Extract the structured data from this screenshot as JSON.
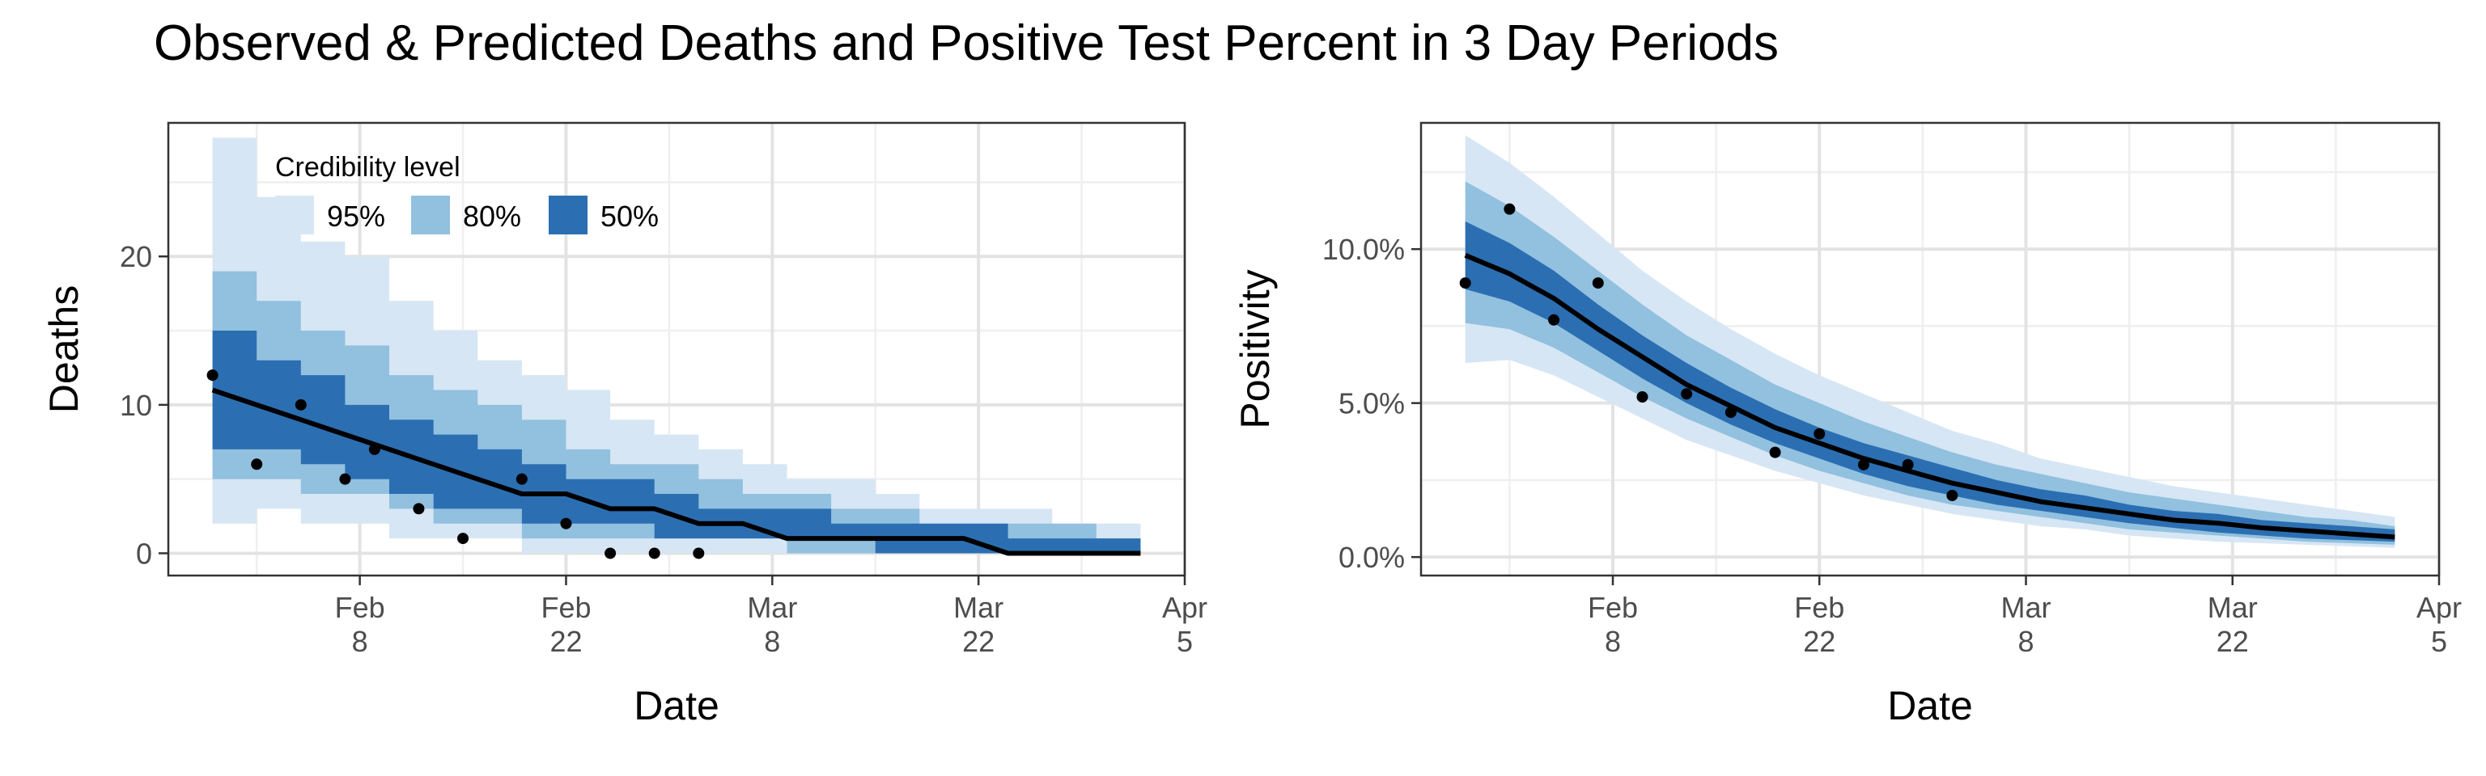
{
  "title": "Observed & Predicted Deaths and Positive Test Percent in 3 Day Periods",
  "colors": {
    "band95": "#d6e6f4",
    "band80": "#92c0df",
    "band50": "#2b6fb2",
    "median": "#000000",
    "points": "#000000",
    "grid_major": "#e3e3e3",
    "grid_minor": "#efefef",
    "panel_border": "#333333"
  },
  "chart_data": [
    {
      "type": "area",
      "title": "",
      "xlabel": "Date",
      "ylabel": "Deaths",
      "x_axis": "date",
      "xlim": [
        "2021-01-26",
        "2021-04-05"
      ],
      "ylim": [
        -1.5,
        29
      ],
      "x_ticks": [
        {
          "date": "2021-02-08",
          "label": [
            "Feb",
            "8"
          ]
        },
        {
          "date": "2021-02-22",
          "label": [
            "Feb",
            "22"
          ]
        },
        {
          "date": "2021-03-08",
          "label": [
            "Mar",
            "8"
          ]
        },
        {
          "date": "2021-03-22",
          "label": [
            "Mar",
            "22"
          ]
        },
        {
          "date": "2021-04-05",
          "label": [
            "Apr",
            "5"
          ]
        }
      ],
      "y_ticks": [
        {
          "value": 0,
          "label": "0"
        },
        {
          "value": 10,
          "label": "10"
        },
        {
          "value": 20,
          "label": "20"
        }
      ],
      "grid": true,
      "legend": {
        "title": "Credibility level",
        "placement": "top-left",
        "items": [
          {
            "label": "95%",
            "color": "#d6e6f4"
          },
          {
            "label": "80%",
            "color": "#92c0df"
          },
          {
            "label": "50%",
            "color": "#2b6fb2"
          }
        ]
      },
      "x": [
        "2021-01-29",
        "2021-02-01",
        "2021-02-04",
        "2021-02-07",
        "2021-02-10",
        "2021-02-13",
        "2021-02-16",
        "2021-02-19",
        "2021-02-22",
        "2021-02-25",
        "2021-02-28",
        "2021-03-03",
        "2021-03-06",
        "2021-03-09",
        "2021-03-12",
        "2021-03-15",
        "2021-03-18",
        "2021-03-21",
        "2021-03-24",
        "2021-03-27",
        "2021-03-30",
        "2021-04-02"
      ],
      "bands": {
        "95%": {
          "lower": [
            2,
            3,
            2,
            2,
            1,
            1,
            1,
            0,
            0,
            0,
            0,
            0,
            0,
            0,
            0,
            0,
            0,
            0,
            0,
            0,
            0,
            0
          ],
          "upper": [
            28,
            24,
            21,
            20,
            17,
            15,
            13,
            12,
            11,
            9,
            8,
            7,
            6,
            5,
            5,
            4,
            3,
            3,
            3,
            2,
            2,
            2
          ]
        },
        "80%": {
          "lower": [
            5,
            5,
            4,
            4,
            3,
            2,
            2,
            1,
            1,
            1,
            1,
            1,
            1,
            0,
            0,
            0,
            0,
            0,
            0,
            0,
            0,
            0
          ],
          "upper": [
            19,
            17,
            15,
            14,
            12,
            11,
            10,
            9,
            7,
            6,
            6,
            5,
            4,
            4,
            3,
            3,
            2,
            2,
            2,
            2,
            1,
            1
          ]
        },
        "50%": {
          "lower": [
            7,
            7,
            6,
            5,
            4,
            3,
            3,
            2,
            2,
            2,
            1,
            1,
            1,
            1,
            1,
            0,
            0,
            0,
            0,
            0,
            0,
            0
          ],
          "upper": [
            15,
            13,
            12,
            10,
            9,
            8,
            7,
            6,
            5,
            5,
            4,
            3,
            3,
            3,
            2,
            2,
            2,
            2,
            1,
            1,
            1,
            1
          ]
        }
      },
      "median": [
        11,
        10,
        9,
        8,
        7,
        6,
        5,
        4,
        4,
        3,
        3,
        2,
        2,
        1,
        1,
        1,
        1,
        1,
        0,
        0,
        0,
        0
      ],
      "observed": [
        {
          "x": "2021-01-29",
          "y": 12
        },
        {
          "x": "2021-02-01",
          "y": 6
        },
        {
          "x": "2021-02-04",
          "y": 10
        },
        {
          "x": "2021-02-07",
          "y": 5
        },
        {
          "x": "2021-02-09",
          "y": 7
        },
        {
          "x": "2021-02-12",
          "y": 3
        },
        {
          "x": "2021-02-15",
          "y": 1
        },
        {
          "x": "2021-02-19",
          "y": 5
        },
        {
          "x": "2021-02-22",
          "y": 2
        },
        {
          "x": "2021-02-25",
          "y": 0
        },
        {
          "x": "2021-02-28",
          "y": 0
        },
        {
          "x": "2021-03-03",
          "y": 0
        }
      ]
    },
    {
      "type": "area",
      "title": "",
      "xlabel": "Date",
      "ylabel": "Positivity",
      "x_axis": "date",
      "xlim": [
        "2021-01-26",
        "2021-04-05"
      ],
      "ylim": [
        -0.006,
        0.141
      ],
      "x_ticks": [
        {
          "date": "2021-02-08",
          "label": [
            "Feb",
            "8"
          ]
        },
        {
          "date": "2021-02-22",
          "label": [
            "Feb",
            "22"
          ]
        },
        {
          "date": "2021-03-08",
          "label": [
            "Mar",
            "8"
          ]
        },
        {
          "date": "2021-03-22",
          "label": [
            "Mar",
            "22"
          ]
        },
        {
          "date": "2021-04-05",
          "label": [
            "Apr",
            "5"
          ]
        }
      ],
      "y_ticks": [
        {
          "value": 0,
          "label": "0.0%"
        },
        {
          "value": 0.05,
          "label": "5.0%"
        },
        {
          "value": 0.1,
          "label": "10.0%"
        }
      ],
      "grid": true,
      "x": [
        "2021-01-29",
        "2021-02-01",
        "2021-02-04",
        "2021-02-07",
        "2021-02-10",
        "2021-02-13",
        "2021-02-16",
        "2021-02-19",
        "2021-02-22",
        "2021-02-25",
        "2021-02-28",
        "2021-03-03",
        "2021-03-06",
        "2021-03-09",
        "2021-03-12",
        "2021-03-15",
        "2021-03-18",
        "2021-03-21",
        "2021-03-24",
        "2021-03-27",
        "2021-03-30",
        "2021-04-02"
      ],
      "bands": {
        "95%": {
          "lower": [
            0.063,
            0.064,
            0.059,
            0.052,
            0.045,
            0.038,
            0.033,
            0.028,
            0.024,
            0.02,
            0.017,
            0.014,
            0.012,
            0.01,
            0.009,
            0.007,
            0.006,
            0.005,
            0.0045,
            0.004,
            0.0035,
            0.003
          ],
          "upper": [
            0.137,
            0.128,
            0.117,
            0.105,
            0.093,
            0.083,
            0.074,
            0.066,
            0.059,
            0.053,
            0.047,
            0.041,
            0.037,
            0.032,
            0.029,
            0.026,
            0.023,
            0.021,
            0.019,
            0.017,
            0.015,
            0.013
          ]
        },
        "80%": {
          "lower": [
            0.076,
            0.074,
            0.068,
            0.06,
            0.052,
            0.045,
            0.039,
            0.033,
            0.028,
            0.024,
            0.02,
            0.017,
            0.015,
            0.013,
            0.011,
            0.009,
            0.008,
            0.007,
            0.006,
            0.005,
            0.0045,
            0.004
          ],
          "upper": [
            0.122,
            0.114,
            0.104,
            0.093,
            0.082,
            0.072,
            0.064,
            0.056,
            0.05,
            0.044,
            0.039,
            0.034,
            0.03,
            0.027,
            0.024,
            0.021,
            0.019,
            0.017,
            0.015,
            0.013,
            0.012,
            0.01
          ]
        },
        "50%": {
          "lower": [
            0.087,
            0.083,
            0.076,
            0.067,
            0.058,
            0.05,
            0.043,
            0.037,
            0.032,
            0.027,
            0.023,
            0.02,
            0.017,
            0.015,
            0.013,
            0.011,
            0.0095,
            0.008,
            0.007,
            0.006,
            0.0055,
            0.005
          ],
          "upper": [
            0.109,
            0.102,
            0.093,
            0.082,
            0.072,
            0.063,
            0.055,
            0.048,
            0.042,
            0.037,
            0.033,
            0.029,
            0.025,
            0.022,
            0.02,
            0.017,
            0.015,
            0.014,
            0.012,
            0.011,
            0.01,
            0.009
          ]
        }
      },
      "median": [
        0.098,
        0.092,
        0.084,
        0.074,
        0.065,
        0.056,
        0.049,
        0.042,
        0.037,
        0.032,
        0.028,
        0.024,
        0.021,
        0.018,
        0.016,
        0.014,
        0.012,
        0.011,
        0.0095,
        0.0085,
        0.0075,
        0.0065
      ],
      "observed": [
        {
          "x": "2021-01-29",
          "y": 0.089
        },
        {
          "x": "2021-02-01",
          "y": 0.113
        },
        {
          "x": "2021-02-04",
          "y": 0.077
        },
        {
          "x": "2021-02-07",
          "y": 0.089
        },
        {
          "x": "2021-02-10",
          "y": 0.052
        },
        {
          "x": "2021-02-13",
          "y": 0.053
        },
        {
          "x": "2021-02-16",
          "y": 0.047
        },
        {
          "x": "2021-02-19",
          "y": 0.034
        },
        {
          "x": "2021-02-22",
          "y": 0.04
        },
        {
          "x": "2021-02-25",
          "y": 0.03
        },
        {
          "x": "2021-02-28",
          "y": 0.03
        },
        {
          "x": "2021-03-03",
          "y": 0.02
        }
      ]
    }
  ]
}
